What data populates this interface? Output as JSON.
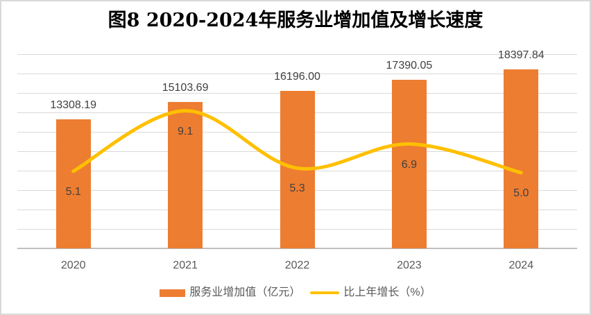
{
  "colors": {
    "bar": "#ED7D31",
    "line": "#FFC000",
    "grid": "#D9D9D9",
    "axis": "#BFBFBF",
    "frame": "#D9D9D9",
    "bar_label": "#404040",
    "category_label": "#595959",
    "title": "#000000"
  },
  "chart_data": {
    "type": "bar+line",
    "title": "图8 2020-2024年服务业增加值及增长速度",
    "categories": [
      "2020",
      "2021",
      "2022",
      "2023",
      "2024"
    ],
    "series": [
      {
        "name": "服务业增加值（亿元）",
        "type": "bar",
        "values": [
          13308.19,
          15103.69,
          16196.0,
          17390.05,
          18397.84
        ],
        "labels": [
          "13308.19",
          "15103.69",
          "16196.00",
          "17390.05",
          "18397.84"
        ],
        "axis": "primary"
      },
      {
        "name": "比上年增长（%）",
        "type": "line",
        "smooth": true,
        "values": [
          5.1,
          9.1,
          5.3,
          6.9,
          5.0
        ],
        "labels": [
          "5.1",
          "9.1",
          "5.3",
          "6.9",
          "5.0"
        ],
        "axis": "secondary"
      }
    ],
    "ylim": [
      0,
      20000
    ],
    "gridline_step": 2000,
    "y2lim": [
      0,
      12.84
    ],
    "axes_labels_visible": false,
    "grid": true,
    "legend_position": "bottom"
  }
}
